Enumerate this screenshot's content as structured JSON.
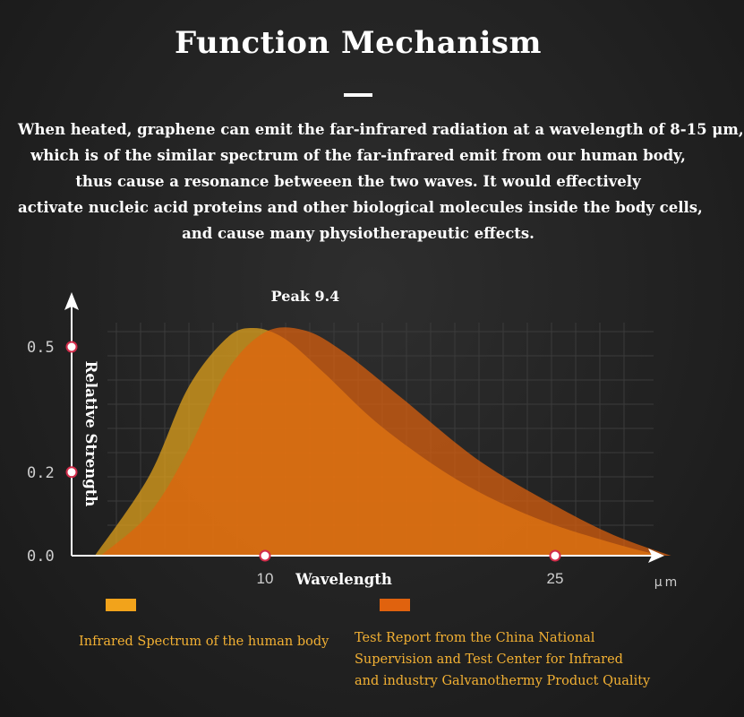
{
  "header": {
    "title": "Function Mechanism",
    "description_lines": [
      "When heated, graphene can emit the far-infrared radiation at a wavelength of 8-15 μm,",
      "which is of the similar spectrum of the far-infrared emit from our human body,",
      "thus cause a resonance betweeen the two waves. It would effectively",
      "activate nucleic acid proteins and other biological molecules inside the body cells,",
      "and cause many physiotherapeutic effects."
    ]
  },
  "chart_data": {
    "type": "area",
    "xlabel": "Wavelength",
    "x_unit": "μm",
    "ylabel": "Relative Strength",
    "peak_annotation": "Peak 9.4",
    "x_ticks": [
      {
        "value": 10,
        "label": "10"
      },
      {
        "value": 25,
        "label": "25"
      }
    ],
    "y_ticks": [
      {
        "value": 0.0,
        "label": "0.0"
      },
      {
        "value": 0.2,
        "label": "0.2"
      },
      {
        "value": 0.5,
        "label": "0.5"
      }
    ],
    "xlim": [
      0,
      31
    ],
    "ylim": [
      0,
      0.6
    ],
    "grid": true,
    "legend_placement": "bottom",
    "series": [
      {
        "name": "Infrared Spectrum of the human body",
        "color": "#e8a61c",
        "x": [
          1.2,
          4,
          6,
          8,
          9.4,
          11,
          13,
          16,
          20,
          24,
          28,
          30.5
        ],
        "y": [
          0.0,
          0.19,
          0.4,
          0.52,
          0.545,
          0.52,
          0.44,
          0.31,
          0.18,
          0.09,
          0.03,
          0.0
        ]
      },
      {
        "name": "Test Report from the China National Supervision and Test Center for Infrared and industry Galvanothermy Product Quality",
        "color": "#e2620d",
        "x": [
          1.5,
          4,
          6,
          8,
          10,
          12,
          14,
          17,
          21,
          25,
          28,
          31
        ],
        "y": [
          0.0,
          0.1,
          0.25,
          0.44,
          0.535,
          0.54,
          0.49,
          0.38,
          0.23,
          0.12,
          0.05,
          0.0
        ]
      }
    ]
  },
  "legend": {
    "items": [
      {
        "color": "#f2a31b",
        "label_lines": [
          "Infrared Spectrum of the human body"
        ]
      },
      {
        "color": "#e0620e",
        "label_lines": [
          "Test Report from the China National",
          "Supervision and Test Center for  Infrared",
          "and industry Galvanothermy Product Quality"
        ]
      }
    ]
  }
}
